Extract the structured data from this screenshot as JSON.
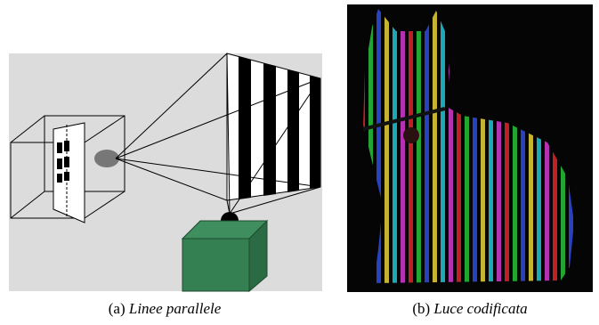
{
  "figures": [
    {
      "label": "(a)",
      "caption": "Linee parallele"
    },
    {
      "label": "(b)",
      "caption": "Luce codificata"
    }
  ]
}
